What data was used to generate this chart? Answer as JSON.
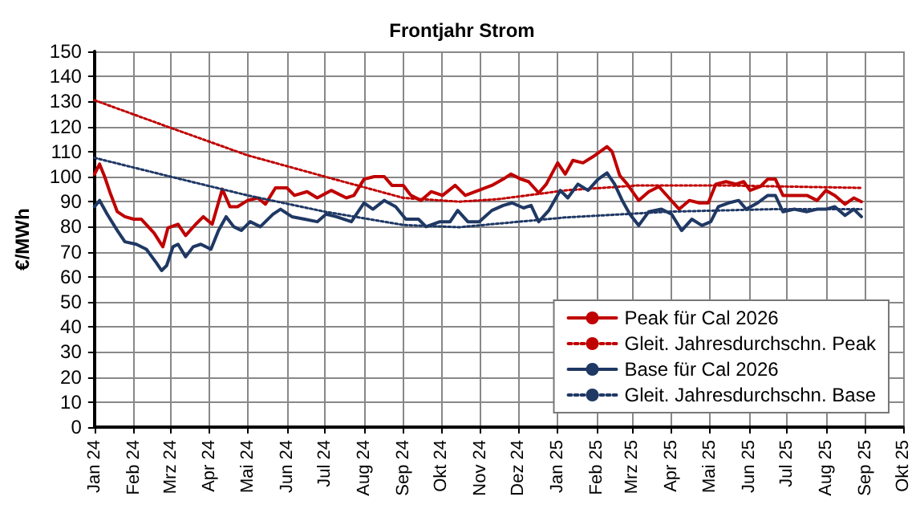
{
  "chart_data": {
    "type": "line",
    "title": "Frontjahr Strom",
    "ylabel": "€/MWh",
    "xlim": [
      "2024-01-01",
      "2025-10-01"
    ],
    "xticks": [
      {
        "value": "2024-01-01",
        "label": "Jan 24"
      },
      {
        "value": "2024-02-01",
        "label": "Feb 24"
      },
      {
        "value": "2024-03-01",
        "label": "Mrz 24"
      },
      {
        "value": "2024-04-01",
        "label": "Apr 24"
      },
      {
        "value": "2024-05-01",
        "label": "Mai 24"
      },
      {
        "value": "2024-06-01",
        "label": "Jun 24"
      },
      {
        "value": "2024-07-01",
        "label": "Jul 24"
      },
      {
        "value": "2024-08-01",
        "label": "Aug 24"
      },
      {
        "value": "2024-09-01",
        "label": "Sep 24"
      },
      {
        "value": "2024-10-01",
        "label": "Okt 24"
      },
      {
        "value": "2024-11-01",
        "label": "Nov 24"
      },
      {
        "value": "2024-12-01",
        "label": "Dez 24"
      },
      {
        "value": "2025-01-01",
        "label": "Jan 25"
      },
      {
        "value": "2025-02-01",
        "label": "Feb 25"
      },
      {
        "value": "2025-03-01",
        "label": "Mrz 25"
      },
      {
        "value": "2025-04-01",
        "label": "Apr 25"
      },
      {
        "value": "2025-05-01",
        "label": "Mai 25"
      },
      {
        "value": "2025-06-01",
        "label": "Jun 25"
      },
      {
        "value": "2025-07-01",
        "label": "Jul 25"
      },
      {
        "value": "2025-08-01",
        "label": "Aug 25"
      },
      {
        "value": "2025-09-01",
        "label": "Sep 25"
      },
      {
        "value": "2025-10-01",
        "label": "Okt 25"
      }
    ],
    "ylim": [
      0,
      150
    ],
    "yticks": [
      0,
      10,
      20,
      30,
      40,
      50,
      60,
      70,
      80,
      90,
      100,
      110,
      120,
      130,
      140,
      150
    ],
    "grid": true,
    "legend": "bottom right",
    "marker": "none",
    "series": [
      {
        "name": "Peak für Cal 2026",
        "color": "#c00000",
        "line_style": "solid",
        "x": [
          "2024-01-01",
          "2024-01-05",
          "2024-01-09",
          "2024-01-13",
          "2024-01-19",
          "2024-01-25",
          "2024-02-01",
          "2024-02-07",
          "2024-02-17",
          "2024-02-24",
          "2024-02-28",
          "2024-03-07",
          "2024-03-13",
          "2024-03-21",
          "2024-03-27",
          "2024-04-03",
          "2024-04-11",
          "2024-04-17",
          "2024-04-23",
          "2024-05-01",
          "2024-05-09",
          "2024-05-15",
          "2024-05-23",
          "2024-06-01",
          "2024-06-07",
          "2024-06-17",
          "2024-06-25",
          "2024-07-06",
          "2024-07-18",
          "2024-07-24",
          "2024-08-01",
          "2024-08-09",
          "2024-08-17",
          "2024-08-23",
          "2024-09-01",
          "2024-09-07",
          "2024-09-15",
          "2024-09-23",
          "2024-10-02",
          "2024-10-12",
          "2024-10-20",
          "2024-10-28",
          "2024-11-10",
          "2024-11-19",
          "2024-11-25",
          "2024-12-03",
          "2024-12-09",
          "2024-12-17",
          "2024-12-23",
          "2025-01-01",
          "2025-01-07",
          "2025-01-13",
          "2025-01-21",
          "2025-01-29",
          "2025-02-09",
          "2025-02-13",
          "2025-02-19",
          "2025-02-25",
          "2025-03-06",
          "2025-03-14",
          "2025-03-22",
          "2025-03-30",
          "2025-04-07",
          "2025-04-15",
          "2025-04-23",
          "2025-04-30",
          "2025-05-06",
          "2025-05-14",
          "2025-05-22",
          "2025-05-28",
          "2025-06-02",
          "2025-06-10",
          "2025-06-16",
          "2025-06-22",
          "2025-06-28",
          "2025-07-07",
          "2025-07-17",
          "2025-07-25",
          "2025-08-01",
          "2025-08-08",
          "2025-08-16",
          "2025-08-23",
          "2025-08-29"
        ],
        "values": [
          101,
          105,
          100,
          94,
          86,
          84,
          83,
          83,
          77.5,
          72,
          79.5,
          81,
          76.5,
          81,
          84,
          81,
          95,
          88,
          88,
          90.5,
          91.5,
          89,
          95.5,
          95.5,
          92.5,
          94,
          91.5,
          94.5,
          91.5,
          92.5,
          99,
          100,
          100,
          96.5,
          96.5,
          92.5,
          90.5,
          94,
          92.5,
          96.5,
          92.5,
          94,
          96.5,
          99,
          101,
          99,
          98,
          93.5,
          97,
          105.5,
          101,
          106.5,
          105.5,
          108,
          112,
          110,
          100.5,
          97,
          90.5,
          94,
          96,
          91.5,
          87,
          90.5,
          89.5,
          89.5,
          97,
          98,
          97,
          98,
          94.5,
          96,
          99,
          99,
          92.5,
          92.5,
          92.5,
          90.5,
          94.5,
          92.5,
          89,
          91.5,
          90
        ]
      },
      {
        "name": "Gleit. Jahresdurchschn. Peak",
        "color": "#c00000",
        "line_style": "dotted",
        "x": [
          "2024-01-01",
          "2024-03-01",
          "2024-05-01",
          "2024-07-01",
          "2024-09-01",
          "2024-10-15",
          "2024-11-15",
          "2025-01-07",
          "2025-03-06",
          "2025-05-11",
          "2025-08-29"
        ],
        "values": [
          130.5,
          119.5,
          108.5,
          100,
          91.5,
          90,
          91,
          94.5,
          96.5,
          96.5,
          95.5
        ]
      },
      {
        "name": "Base für Cal 2026",
        "color": "#1f3864",
        "line_style": "solid",
        "x": [
          "2024-01-01",
          "2024-01-05",
          "2024-01-11",
          "2024-01-19",
          "2024-01-25",
          "2024-02-03",
          "2024-02-11",
          "2024-02-19",
          "2024-02-23",
          "2024-02-27",
          "2024-03-03",
          "2024-03-07",
          "2024-03-13",
          "2024-03-19",
          "2024-03-25",
          "2024-04-02",
          "2024-04-08",
          "2024-04-14",
          "2024-04-20",
          "2024-04-26",
          "2024-05-03",
          "2024-05-11",
          "2024-05-21",
          "2024-05-27",
          "2024-06-05",
          "2024-06-15",
          "2024-06-25",
          "2024-07-02",
          "2024-07-10",
          "2024-07-22",
          "2024-08-01",
          "2024-08-08",
          "2024-08-17",
          "2024-08-26",
          "2024-09-03",
          "2024-09-13",
          "2024-09-19",
          "2024-09-30",
          "2024-10-08",
          "2024-10-14",
          "2024-10-22",
          "2024-10-31",
          "2024-11-10",
          "2024-11-19",
          "2024-11-26",
          "2024-12-05",
          "2024-12-11",
          "2024-12-17",
          "2024-12-25",
          "2025-01-03",
          "2025-01-09",
          "2025-01-17",
          "2025-01-25",
          "2025-02-02",
          "2025-02-09",
          "2025-02-15",
          "2025-02-21",
          "2025-02-27",
          "2025-03-06",
          "2025-03-14",
          "2025-03-24",
          "2025-04-01",
          "2025-04-09",
          "2025-04-17",
          "2025-04-25",
          "2025-05-02",
          "2025-05-08",
          "2025-05-16",
          "2025-05-24",
          "2025-05-30",
          "2025-06-08",
          "2025-06-16",
          "2025-06-22",
          "2025-06-28",
          "2025-07-07",
          "2025-07-17",
          "2025-07-25",
          "2025-08-01",
          "2025-08-08",
          "2025-08-16",
          "2025-08-23",
          "2025-08-29"
        ],
        "values": [
          88,
          90.5,
          85,
          78.5,
          74,
          73,
          71,
          65.5,
          62.5,
          64.5,
          72,
          73,
          68,
          72,
          73,
          71,
          78.5,
          84,
          80,
          78.5,
          82,
          80,
          85,
          87,
          84,
          83,
          82,
          85,
          84,
          82,
          89.5,
          87,
          90.5,
          88,
          83,
          83,
          80,
          82,
          82,
          86.5,
          82,
          82,
          86.5,
          88.5,
          89.5,
          87.5,
          88.5,
          82,
          86.5,
          94.5,
          91.5,
          97,
          94.5,
          99,
          101.5,
          97,
          90.5,
          85,
          80.5,
          86,
          87,
          85,
          78.5,
          83,
          80.5,
          82,
          88,
          89.5,
          90.5,
          87,
          89.5,
          92.5,
          92.5,
          86,
          87,
          86,
          87,
          87,
          88,
          84.5,
          87,
          84
        ]
      },
      {
        "name": "Gleit. Jahresdurchschn. Base",
        "color": "#1f3864",
        "line_style": "dotted",
        "x": [
          "2024-01-01",
          "2024-03-01",
          "2024-05-01",
          "2024-07-01",
          "2024-09-01",
          "2024-10-15",
          "2025-01-07",
          "2025-03-30",
          "2025-06-20",
          "2025-08-29"
        ],
        "values": [
          107.5,
          100,
          92.5,
          86,
          80.7,
          79.8,
          83.7,
          86,
          87,
          87
        ]
      }
    ]
  }
}
